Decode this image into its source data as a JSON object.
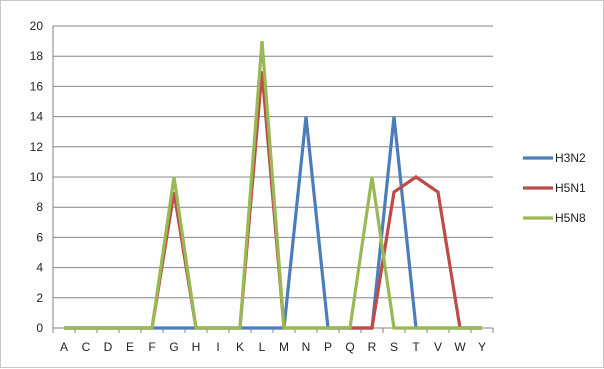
{
  "chart_data": {
    "type": "line",
    "title": "",
    "xlabel": "",
    "ylabel": "",
    "categories": [
      "A",
      "C",
      "D",
      "E",
      "F",
      "G",
      "H",
      "I",
      "K",
      "L",
      "M",
      "N",
      "P",
      "Q",
      "R",
      "S",
      "T",
      "V",
      "W",
      "Y"
    ],
    "ylim": [
      0,
      20
    ],
    "yticks": [
      0,
      2,
      4,
      6,
      8,
      10,
      12,
      14,
      16,
      18,
      20
    ],
    "grid": true,
    "legend_position": "right",
    "series": [
      {
        "name": "H3N2",
        "color": "#4a7ebb",
        "values": [
          0,
          0,
          0,
          0,
          0,
          0,
          0,
          0,
          0,
          0,
          0,
          14,
          0,
          0,
          0,
          14,
          0,
          0,
          0,
          0
        ]
      },
      {
        "name": "H5N1",
        "color": "#be4b48",
        "values": [
          0,
          0,
          0,
          0,
          0,
          9,
          0,
          0,
          0,
          17,
          0,
          0,
          0,
          0,
          0,
          9,
          10,
          9,
          0,
          0
        ]
      },
      {
        "name": "H5N8",
        "color": "#98b954",
        "values": [
          0,
          0,
          0,
          0,
          0,
          10,
          0,
          0,
          0,
          19,
          0,
          0,
          0,
          0,
          10,
          0,
          0,
          0,
          0,
          0
        ]
      }
    ]
  }
}
